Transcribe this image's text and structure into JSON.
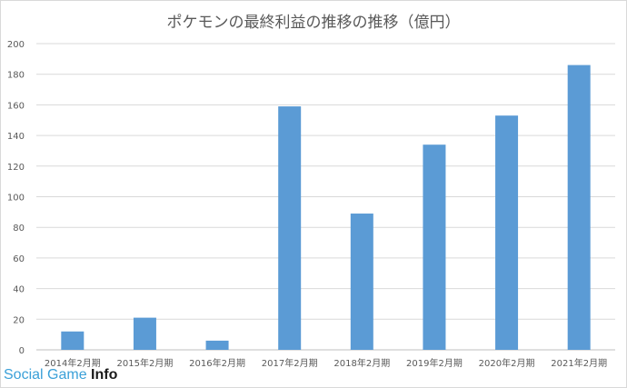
{
  "chart_data": {
    "type": "bar",
    "title": "ポケモンの最終利益の推移の推移（億円）",
    "categories": [
      "2014年2月期",
      "2015年2月期",
      "2016年2月期",
      "2017年2月期",
      "2018年2月期",
      "2019年2月期",
      "2020年2月期",
      "2021年2月期"
    ],
    "values": [
      12,
      21,
      6,
      159,
      89,
      134,
      153,
      186
    ],
    "ylim": [
      0,
      200
    ],
    "yticks": [
      0,
      20,
      40,
      60,
      80,
      100,
      120,
      140,
      160,
      180,
      200
    ],
    "bar_color": "#5b9bd5",
    "grid": true
  },
  "watermark": {
    "part1": "Social Game",
    "part2": "Info"
  }
}
